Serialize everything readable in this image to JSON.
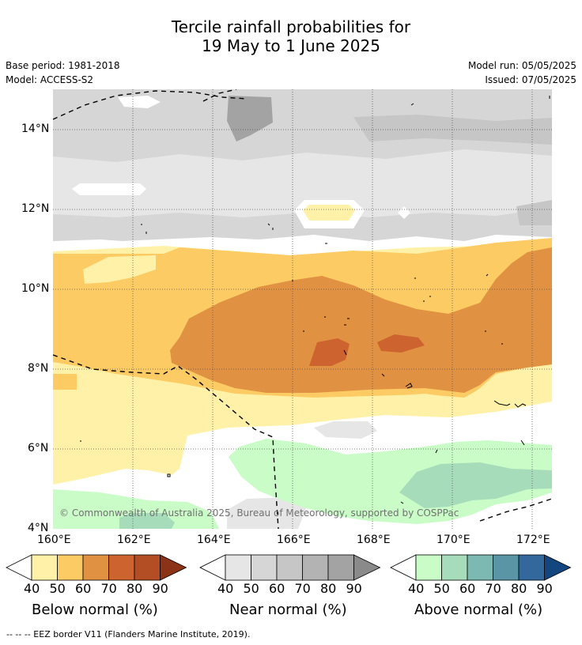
{
  "title": {
    "line1": "Tercile rainfall probabilities for",
    "line2": "19 May to 1 June 2025"
  },
  "meta": {
    "base_period": "Base period: 1981-2018",
    "model": "Model: ACCESS-S2",
    "model_run": "Model run: 05/05/2025",
    "issued": "Issued: 07/05/2025"
  },
  "map": {
    "lat_labels": [
      "14°N",
      "12°N",
      "10°N",
      "8°N",
      "6°N",
      "4°N"
    ],
    "lon_labels": [
      "160°E",
      "162°E",
      "164°E",
      "166°E",
      "168°E",
      "170°E",
      "172°E"
    ],
    "lat_range": [
      4,
      15
    ],
    "lon_range": [
      160,
      172.5
    ],
    "copyright": "© Commonwealth of Australia 2025, Bureau of Meteorology, supported by COSPPac",
    "colors": {
      "below": [
        "#fff2a8",
        "#fdcb63",
        "#e09142",
        "#cd632e",
        "#b24d24",
        "#8c3317"
      ],
      "near": [
        "#e6e6e6",
        "#d6d6d6",
        "#c6c6c6",
        "#b3b3b3",
        "#a3a3a3",
        "#8a8a8a"
      ],
      "above": [
        "#c9fcc7",
        "#a7dcba",
        "#7cb9b2",
        "#5a95a6",
        "#33689c",
        "#13467e"
      ]
    }
  },
  "colorbars": [
    {
      "label": "Below normal (%)",
      "ticks": [
        "40",
        "50",
        "60",
        "70",
        "80",
        "90"
      ]
    },
    {
      "label": "Near normal (%)",
      "ticks": [
        "40",
        "50",
        "60",
        "70",
        "80",
        "90"
      ]
    },
    {
      "label": "Above normal (%)",
      "ticks": [
        "40",
        "50",
        "60",
        "70",
        "80",
        "90"
      ]
    }
  ],
  "footer": "--  --  -- EEZ border V11 (Flanders Marine Institute, 2019)."
}
